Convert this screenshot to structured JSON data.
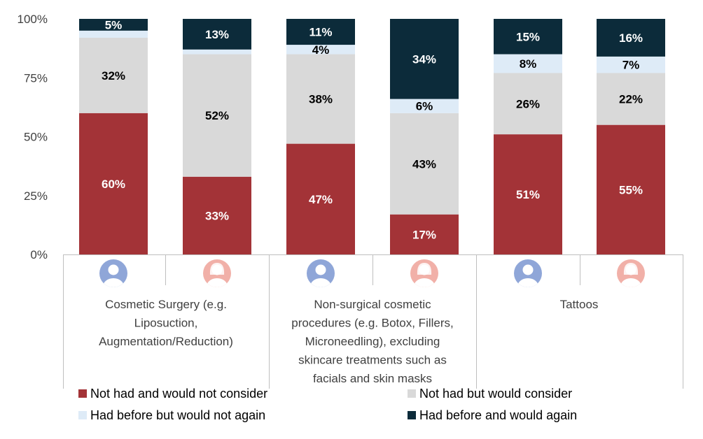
{
  "chart_data": {
    "type": "bar",
    "stacked": true,
    "ylim": [
      0,
      100
    ],
    "y_ticks": [
      "0%",
      "25%",
      "50%",
      "75%",
      "100%"
    ],
    "y_tick_values": [
      0,
      25,
      50,
      75,
      100
    ],
    "groups": [
      {
        "label_lines": [
          "Cosmetic Surgery (e.g.",
          "Liposuction,",
          "Augmentation/Reduction)"
        ],
        "bars": [
          {
            "icon": "male-avatar-icon",
            "values": [
              60,
              32,
              3,
              5
            ]
          },
          {
            "icon": "female-avatar-icon",
            "values": [
              33,
              52,
              2,
              13
            ]
          }
        ]
      },
      {
        "label_lines": [
          "Non-surgical cosmetic",
          "procedures (e.g. Botox, Fillers,",
          "Microneedling), excluding",
          "skincare treatments such as",
          "facials and skin masks"
        ],
        "bars": [
          {
            "icon": "male-avatar-icon",
            "values": [
              47,
              38,
              4,
              11
            ]
          },
          {
            "icon": "female-avatar-icon",
            "values": [
              17,
              43,
              6,
              34
            ]
          }
        ]
      },
      {
        "label_lines": [
          "Tattoos"
        ],
        "bars": [
          {
            "icon": "male-avatar-icon",
            "values": [
              51,
              26,
              8,
              15
            ]
          },
          {
            "icon": "female-avatar-icon",
            "values": [
              55,
              22,
              7,
              16
            ]
          }
        ]
      }
    ],
    "series": [
      {
        "name": "Not had and would not consider",
        "color": "#a33337",
        "label_color": "#ffffff"
      },
      {
        "name": "Not had but would consider",
        "color": "#d9d9d9",
        "label_color": "#000000"
      },
      {
        "name": "Had before but would not again",
        "color": "#deebf7",
        "label_color": "#000000"
      },
      {
        "name": "Had before and would again",
        "color": "#0c2b3a",
        "label_color": "#ffffff"
      }
    ],
    "data_labels": [
      [
        "60%",
        "32%",
        "",
        "5%"
      ],
      [
        "33%",
        "52%",
        "",
        "13%"
      ],
      [
        "47%",
        "38%",
        "4%",
        "11%"
      ],
      [
        "17%",
        "43%",
        "6%",
        "34%"
      ],
      [
        "51%",
        "26%",
        "8%",
        "15%"
      ],
      [
        "55%",
        "22%",
        "7%",
        "16%"
      ]
    ],
    "legend_position": "bottom",
    "icon_colors": {
      "male": "#8fa6d8",
      "female": "#f1b0a8"
    }
  }
}
